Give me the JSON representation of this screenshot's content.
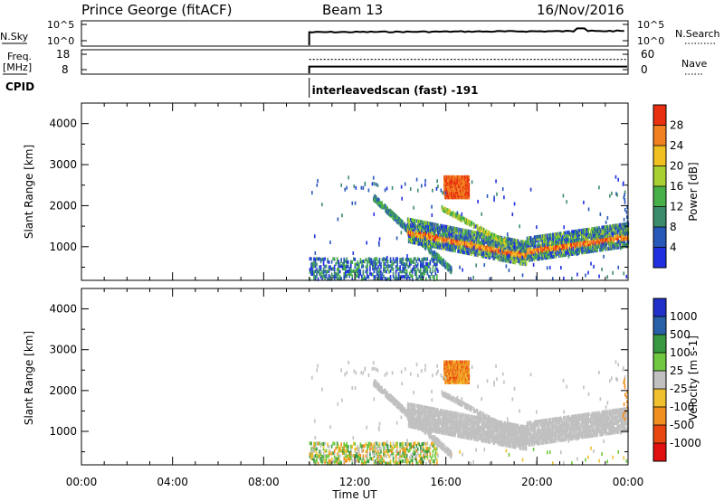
{
  "header": {
    "station": "Prince George (fitACF)",
    "beam": "Beam 13",
    "date": "16/Nov/2016"
  },
  "chart_data": [
    {
      "panel": "noise",
      "type": "line",
      "left_label": "N.Sky",
      "left_ticks": [
        "10^5",
        "10^0"
      ],
      "right_label": "N.Search",
      "right_ticks": [
        "10^5",
        "10^0"
      ],
      "x_start_hours": 10,
      "level": 0.55
    },
    {
      "panel": "frequency",
      "type": "line",
      "left_label_top": "Freq.",
      "left_label_bottom": "[MHz]",
      "left_ticks": [
        "18",
        "8"
      ],
      "left_range": [
        8,
        18
      ],
      "right_label": "Nave",
      "right_ticks": [
        "60",
        "0"
      ],
      "right_range": [
        0,
        60
      ],
      "x_start_hours": 10,
      "freq_level": 10.0,
      "nave_level": 40
    },
    {
      "panel": "cpid",
      "label": "CPID",
      "text": "interleavedscan (fast) -191",
      "x_start_hours": 10
    },
    {
      "panel": "power",
      "type": "heatmap",
      "ylabel": "Slant Range [km]",
      "yticks": [
        1000,
        2000,
        3000,
        4000
      ],
      "ylim": [
        180,
        4500
      ],
      "xlim_hours": [
        0,
        24
      ],
      "colorbar_label": "Power [dB]",
      "colorbar_ticks": [
        "4",
        "8",
        "12",
        "16",
        "20",
        "24",
        "28"
      ],
      "colors": [
        "#2030e0",
        "#2858b8",
        "#3c8c6c",
        "#48b048",
        "#a8d030",
        "#f0c020",
        "#f08020",
        "#e83010"
      ]
    },
    {
      "panel": "velocity",
      "type": "heatmap",
      "ylabel": "Slant Range [km]",
      "yticks": [
        1000,
        2000,
        3000,
        4000
      ],
      "ylim": [
        180,
        4500
      ],
      "xlim_hours": [
        0,
        24
      ],
      "xticks": [
        "00:00",
        "04:00",
        "08:00",
        "12:00",
        "16:00",
        "20:00",
        "00:00"
      ],
      "xlabel": "Time UT",
      "colorbar_label": "Velocity [m s-1]",
      "colorbar_ticks": [
        "1000",
        "500",
        "100",
        "25",
        "-25",
        "-100",
        "-500",
        "-1000"
      ],
      "colors": [
        "#2030c8",
        "#2860a8",
        "#389840",
        "#70c840",
        "#c0c0c0",
        "#f0c030",
        "#f09020",
        "#e84810",
        "#e01010"
      ]
    }
  ]
}
